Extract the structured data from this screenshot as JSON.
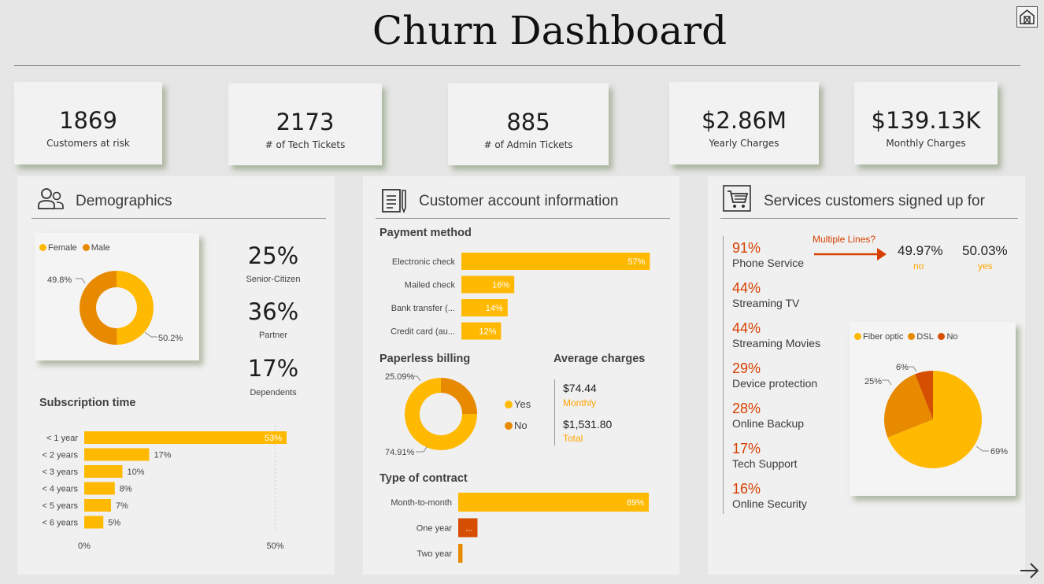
{
  "header": {
    "title": "Churn Dashboard"
  },
  "kpis": [
    {
      "value": "1869",
      "label": "Customers at risk"
    },
    {
      "value": "2173",
      "label": "# of Tech Tickets"
    },
    {
      "value": "885",
      "label": "# of Admin Tickets"
    },
    {
      "value": "$2.86M",
      "label": "Yearly Charges"
    },
    {
      "value": "$139.13K",
      "label": "Monthly Charges"
    }
  ],
  "demographics": {
    "title": "Demographics",
    "gender_chart": {
      "legend": [
        "Female",
        "Male"
      ],
      "labels": [
        "49.8%",
        "50.2%"
      ]
    },
    "stats": [
      {
        "value": "25%",
        "label": "Senior-Citizen"
      },
      {
        "value": "36%",
        "label": "Partner"
      },
      {
        "value": "17%",
        "label": "Dependents"
      }
    ],
    "subscription_title": "Subscription time",
    "axis_ticks": [
      "0%",
      "50%"
    ]
  },
  "account": {
    "title": "Customer account information",
    "payment_title": "Payment method",
    "paperless_title": "Paperless billing",
    "paperless_labels": [
      "25.09%",
      "74.91%"
    ],
    "paperless_legend": [
      "Yes",
      "No"
    ],
    "avg_title": "Average charges",
    "avg_monthly_value": "$74.44",
    "avg_monthly_label": "Monthly",
    "avg_total_value": "$1,531.80",
    "avg_total_label": "Total",
    "contract_title": "Type of contract"
  },
  "services": {
    "title": "Services customers signed up for",
    "items": [
      {
        "pct": "91%",
        "name": "Phone Service"
      },
      {
        "pct": "44%",
        "name": "Streaming TV"
      },
      {
        "pct": "44%",
        "name": "Streaming Movies"
      },
      {
        "pct": "29%",
        "name": "Device protection"
      },
      {
        "pct": "28%",
        "name": "Online Backup"
      },
      {
        "pct": "17%",
        "name": "Tech Support"
      },
      {
        "pct": "16%",
        "name": "Online Security"
      }
    ],
    "multiple_lines_label": "Multiple Lines?",
    "ml_no_value": "49.97%",
    "ml_no_label": "no",
    "ml_yes_value": "50.03%",
    "ml_yes_label": "yes",
    "internet_legend": [
      "Fiber optic",
      "DSL",
      "No"
    ],
    "internet_labels": [
      "6%",
      "25%",
      "69%"
    ]
  },
  "colors": {
    "accent": "#ffb900",
    "secondary": "#e88a00",
    "dark": "#d64f00"
  },
  "icons": {
    "home": "home-icon",
    "people": "people-icon",
    "document": "document-icon",
    "cart": "cart-icon",
    "next": "arrow-right-icon"
  },
  "chart_data": [
    {
      "type": "pie",
      "title": "",
      "categories": [
        "Female",
        "Male"
      ],
      "values": [
        49.8,
        50.2
      ],
      "legend": "top-left"
    },
    {
      "type": "bar",
      "title": "Subscription time",
      "categories": [
        "< 1 year",
        "< 2 years",
        "< 3 years",
        "< 4 years",
        "< 5 years",
        "< 6 years"
      ],
      "values": [
        53,
        17,
        10,
        8,
        7,
        5
      ],
      "labels": [
        "53%",
        "17%",
        "10%",
        "8%",
        "7%",
        "5%"
      ],
      "xlim": [
        0,
        60
      ]
    },
    {
      "type": "bar",
      "title": "Payment method",
      "categories": [
        "Electronic check",
        "Mailed check",
        "Bank transfer (...",
        "Credit card (au..."
      ],
      "values": [
        57,
        16,
        14,
        12
      ],
      "labels": [
        "57%",
        "16%",
        "14%",
        "12%"
      ]
    },
    {
      "type": "pie",
      "title": "Paperless billing",
      "categories": [
        "Yes",
        "No"
      ],
      "values": [
        74.91,
        25.09
      ]
    },
    {
      "type": "bar",
      "title": "Type of contract",
      "categories": [
        "Month-to-month",
        "One year",
        "Two year"
      ],
      "values": [
        89,
        9,
        2
      ],
      "labels": [
        "89%",
        "...",
        ""
      ]
    },
    {
      "type": "pie",
      "title": "",
      "categories": [
        "Fiber optic",
        "DSL",
        "No"
      ],
      "values": [
        69,
        25,
        6
      ],
      "legend": "top-left"
    }
  ]
}
